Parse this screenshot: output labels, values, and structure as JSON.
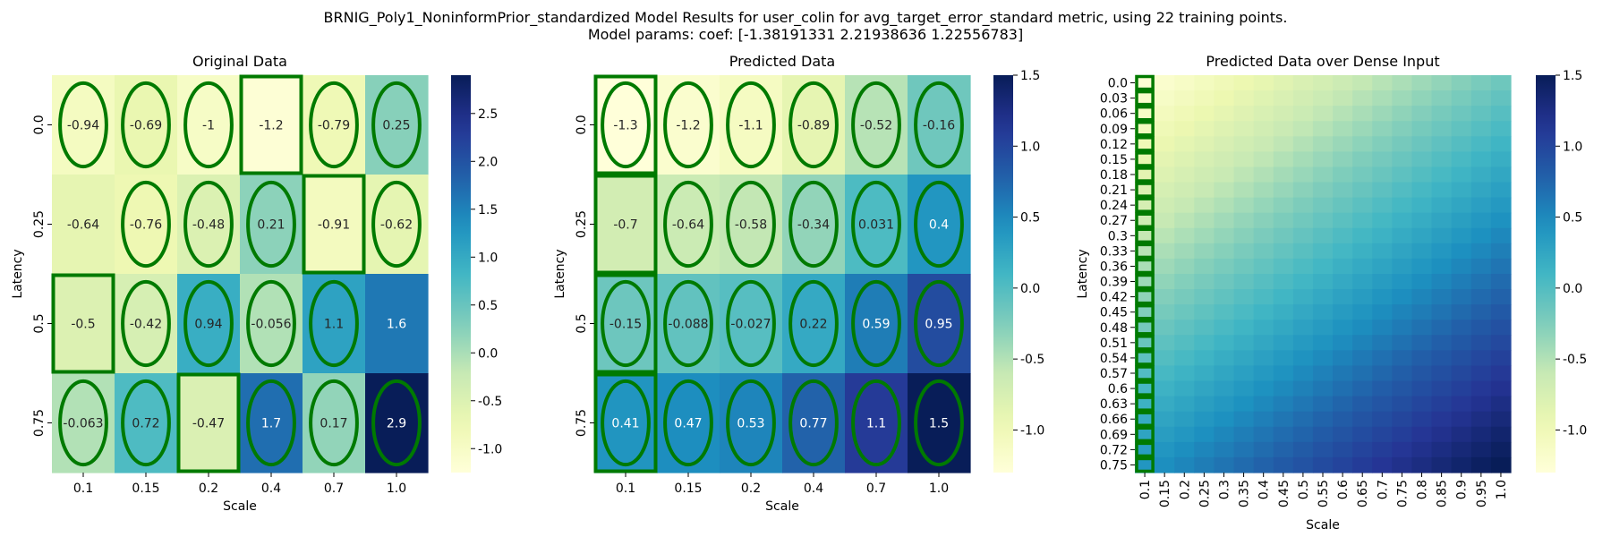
{
  "figure": {
    "title_line1": "BRNIG_Poly1_NoninformPrior_standardized Model Results for user_colin for avg_target_error_standard metric, using 22 training points.",
    "title_line2": "Model params: coef: [-1.38191331  2.21938636  1.22556783]"
  },
  "colormap": {
    "name": "YlGnBu",
    "stops": [
      "#ffffd9",
      "#edf8b1",
      "#c7e9b4",
      "#7fcdbb",
      "#41b6c4",
      "#1d91c0",
      "#225ea8",
      "#253494",
      "#081d58"
    ]
  },
  "marker_color": "#007a00",
  "chart_data": [
    {
      "type": "heatmap",
      "title": "Original Data",
      "xlabel": "Scale",
      "ylabel": "Latency",
      "x_ticks": [
        "0.1",
        "0.15",
        "0.2",
        "0.4",
        "0.7",
        "1.0"
      ],
      "y_ticks": [
        "0.0",
        "0.25",
        "0.5",
        "0.75"
      ],
      "values": [
        [
          -0.94,
          -0.69,
          -1,
          -1.2,
          -0.79,
          0.25
        ],
        [
          -0.64,
          -0.76,
          -0.48,
          0.21,
          -0.91,
          -0.62
        ],
        [
          -0.5,
          -0.42,
          0.94,
          -0.056,
          1.1,
          1.6
        ],
        [
          -0.063,
          0.72,
          -0.47,
          1.7,
          0.17,
          2.9
        ]
      ],
      "value_labels": [
        [
          "-0.94",
          "-0.69",
          "-1",
          "-1.2",
          "-0.79",
          "0.25"
        ],
        [
          "-0.64",
          "-0.76",
          "-0.48",
          "0.21",
          "-0.91",
          "-0.62"
        ],
        [
          "-0.5",
          "-0.42",
          "0.94",
          "-0.056",
          "1.1",
          "1.6"
        ],
        [
          "-0.063",
          "0.72",
          "-0.47",
          "1.7",
          "0.17",
          "2.9"
        ]
      ],
      "vmin": -1.25,
      "vmax": 2.9,
      "colorbar_ticks": [
        "-1.0",
        "-0.5",
        "0.0",
        "0.5",
        "1.0",
        "1.5",
        "2.0",
        "2.5"
      ],
      "ellipses": [
        [
          1,
          1,
          1,
          0,
          1,
          1
        ],
        [
          0,
          1,
          1,
          1,
          0,
          1
        ],
        [
          0,
          1,
          1,
          1,
          1,
          0
        ],
        [
          1,
          1,
          0,
          1,
          1,
          1
        ]
      ],
      "rectangles": [
        [
          0,
          0,
          0,
          1,
          0,
          0
        ],
        [
          0,
          0,
          0,
          0,
          1,
          0
        ],
        [
          1,
          0,
          0,
          0,
          0,
          0
        ],
        [
          0,
          0,
          1,
          0,
          0,
          0
        ]
      ]
    },
    {
      "type": "heatmap",
      "title": "Predicted Data",
      "xlabel": "Scale",
      "ylabel": "Latency",
      "x_ticks": [
        "0.1",
        "0.15",
        "0.2",
        "0.4",
        "0.7",
        "1.0"
      ],
      "y_ticks": [
        "0.0",
        "0.25",
        "0.5",
        "0.75"
      ],
      "values": [
        [
          -1.3,
          -1.2,
          -1.1,
          -0.89,
          -0.52,
          -0.16
        ],
        [
          -0.7,
          -0.64,
          -0.58,
          -0.34,
          0.031,
          0.4
        ],
        [
          -0.15,
          -0.088,
          -0.027,
          0.22,
          0.59,
          0.95
        ],
        [
          0.41,
          0.47,
          0.53,
          0.77,
          1.1,
          1.5
        ]
      ],
      "value_labels": [
        [
          "-1.3",
          "-1.2",
          "-1.1",
          "-0.89",
          "-0.52",
          "-0.16"
        ],
        [
          "-0.7",
          "-0.64",
          "-0.58",
          "-0.34",
          "0.031",
          "0.4"
        ],
        [
          "-0.15",
          "-0.088",
          "-0.027",
          "0.22",
          "0.59",
          "0.95"
        ],
        [
          "0.41",
          "0.47",
          "0.53",
          "0.77",
          "1.1",
          "1.5"
        ]
      ],
      "vmin": -1.3,
      "vmax": 1.5,
      "colorbar_ticks": [
        "-1.0",
        "-0.5",
        "0.0",
        "0.5",
        "1.0",
        "1.5"
      ],
      "ellipses": [
        [
          1,
          1,
          1,
          1,
          1,
          1
        ],
        [
          0,
          1,
          1,
          1,
          1,
          1
        ],
        [
          1,
          1,
          1,
          1,
          1,
          1
        ],
        [
          1,
          1,
          1,
          1,
          1,
          1
        ]
      ],
      "rectangles": [
        [
          1,
          0,
          0,
          0,
          0,
          0
        ],
        [
          1,
          0,
          0,
          0,
          0,
          0
        ],
        [
          1,
          0,
          0,
          0,
          0,
          0
        ],
        [
          1,
          0,
          0,
          0,
          0,
          0
        ]
      ]
    },
    {
      "type": "heatmap",
      "title": "Predicted Data over Dense Input",
      "xlabel": "Scale",
      "ylabel": "Latency",
      "x_ticks": [
        "0.1",
        "0.15",
        "0.2",
        "0.25",
        "0.3",
        "0.35",
        "0.4",
        "0.45",
        "0.5",
        "0.55",
        "0.6",
        "0.65",
        "0.7",
        "0.75",
        "0.8",
        "0.85",
        "0.9",
        "0.95",
        "1.0"
      ],
      "y_ticks": [
        "0.0",
        "0.03",
        "0.06",
        "0.09",
        "0.12",
        "0.15",
        "0.18",
        "0.21",
        "0.24",
        "0.27",
        "0.3",
        "0.33",
        "0.36",
        "0.39",
        "0.42",
        "0.45",
        "0.48",
        "0.51",
        "0.54",
        "0.57",
        "0.6",
        "0.63",
        "0.66",
        "0.69",
        "0.72",
        "0.75"
      ],
      "x_range": [
        0.1,
        1.0
      ],
      "y_range": [
        0.0,
        0.75
      ],
      "model_coef": [
        -1.38191331,
        2.21938636,
        1.22556783
      ],
      "vmin": -1.3,
      "vmax": 1.5,
      "colorbar_ticks": [
        "-1.0",
        "-0.5",
        "0.0",
        "0.5",
        "1.0",
        "1.5"
      ],
      "marker_column_x": "0.1"
    }
  ]
}
